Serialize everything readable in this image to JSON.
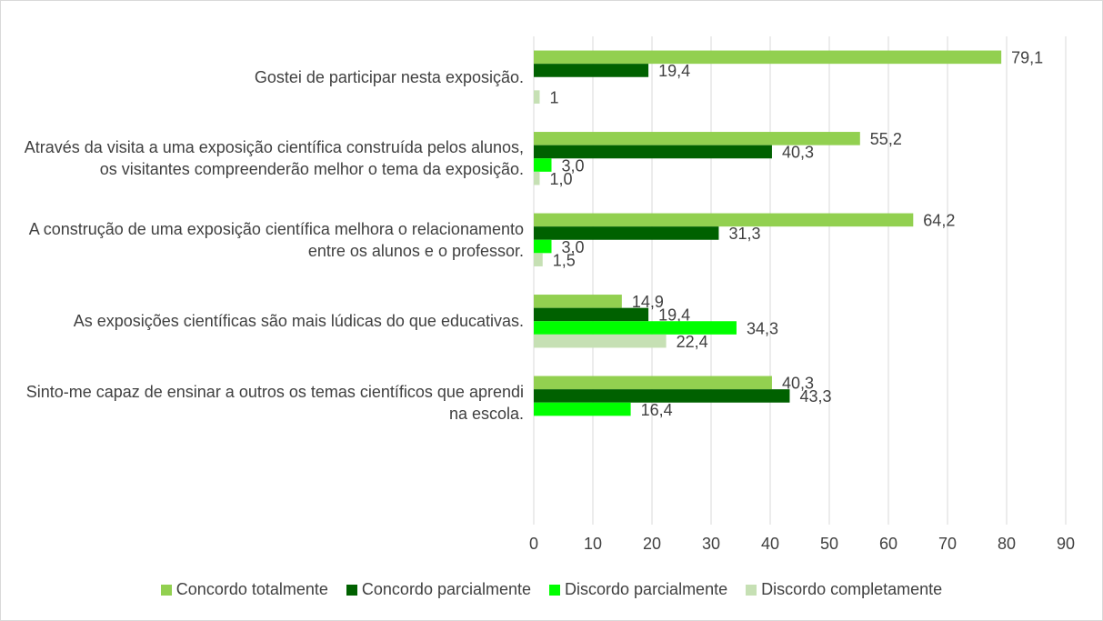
{
  "chart_data": {
    "type": "hbar",
    "categories": [
      "Gostei de participar nesta exposição.",
      "Através da visita a uma exposição científica construída pelos alunos, os visitantes compreenderão melhor o tema da exposição.",
      "A construção de uma exposição científica melhora o relacionamento entre os alunos e o professor.",
      "As exposições científicas são mais lúdicas do que educativas.",
      "Sinto-me capaz de ensinar a outros os temas científicos que aprendi na escola.",
      null
    ],
    "series": [
      {
        "name": "Concordo totalmente",
        "color": "#92d050",
        "values": [
          79.1,
          55.2,
          64.2,
          14.9,
          40.3,
          null
        ],
        "value_labels": [
          "79,1",
          "55,2",
          "64,2",
          "14,9",
          "40,3",
          null
        ]
      },
      {
        "name": "Concordo parcialmente",
        "color": "#006100",
        "values": [
          19.4,
          40.3,
          31.3,
          19.4,
          43.3,
          null
        ],
        "value_labels": [
          "19,4",
          "40,3",
          "31,3",
          "19,4",
          "43,3",
          null
        ]
      },
      {
        "name": "Discordo parcialmente",
        "color": "#00ff00",
        "values": [
          null,
          3.0,
          3.0,
          34.3,
          16.4,
          null
        ],
        "value_labels": [
          null,
          "3,0",
          "3,0",
          "34,3",
          "16,4",
          null
        ]
      },
      {
        "name": "Discordo completamente",
        "color": "#c6e0b4",
        "values": [
          1,
          1.0,
          1.5,
          22.4,
          null,
          null
        ],
        "value_labels": [
          "1",
          "1,0",
          "1,5",
          "22,4",
          null,
          null
        ]
      }
    ],
    "xlim": [
      0,
      90
    ],
    "xticks": [
      0,
      10,
      20,
      30,
      40,
      50,
      60,
      70,
      80,
      90
    ],
    "grid": true,
    "legend": "bottom"
  }
}
